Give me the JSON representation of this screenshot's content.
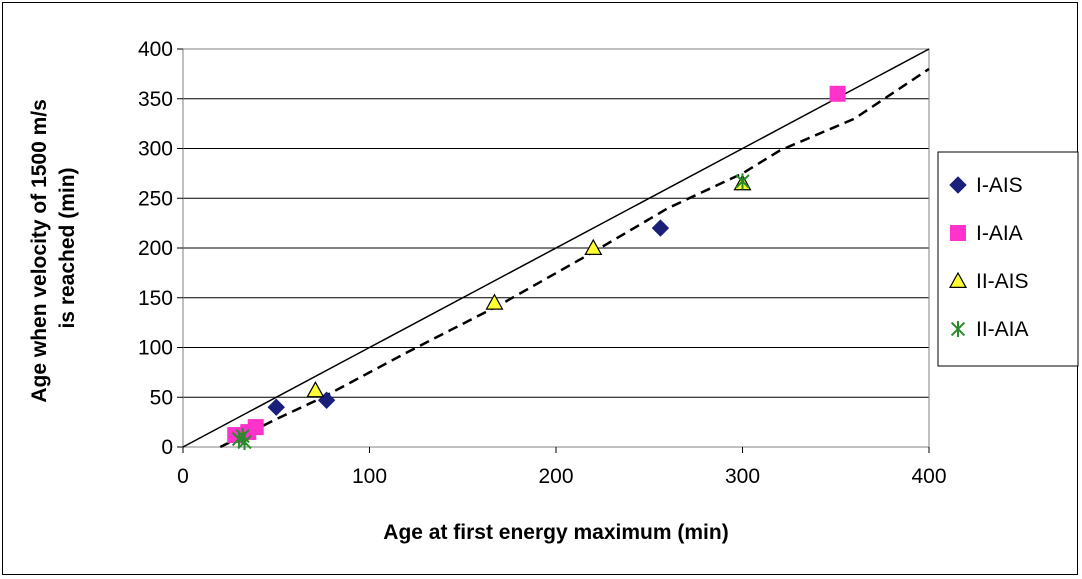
{
  "chart_data": {
    "type": "scatter",
    "title": "",
    "xlabel": "Age at first energy maximum (min)",
    "ylabel_lines": [
      "Age when velocity of 1500 m/s",
      "is reached (min)"
    ],
    "xlim": [
      0,
      400
    ],
    "ylim": [
      0,
      400
    ],
    "x_ticks": [
      0,
      100,
      200,
      300,
      400
    ],
    "y_ticks": [
      0,
      50,
      100,
      150,
      200,
      250,
      300,
      350,
      400
    ],
    "grid": "horizontal",
    "legend_position": "right",
    "series": [
      {
        "name": "I-AIS",
        "marker": "diamond",
        "color": "#1a1f7a",
        "points": [
          [
            31,
            12
          ],
          [
            50,
            40
          ],
          [
            77,
            47
          ],
          [
            256,
            220
          ]
        ]
      },
      {
        "name": "I-AIA",
        "marker": "square",
        "color": "#ff33cc",
        "points": [
          [
            28,
            12
          ],
          [
            35,
            15
          ],
          [
            39,
            20
          ],
          [
            351,
            355
          ]
        ]
      },
      {
        "name": "II-AIS",
        "marker": "triangle",
        "color": "#ffff33",
        "points": [
          [
            71,
            57
          ],
          [
            167,
            145
          ],
          [
            220,
            200
          ],
          [
            300,
            265
          ]
        ]
      },
      {
        "name": "II-AIA",
        "marker": "asterisk",
        "color": "#2a8a2a",
        "points": [
          [
            30,
            8
          ],
          [
            33,
            5
          ],
          [
            32,
            11
          ],
          [
            300,
            267
          ]
        ]
      }
    ],
    "reference_line": {
      "style": "solid",
      "points": [
        [
          0,
          0
        ],
        [
          400,
          400
        ]
      ]
    },
    "trend_line": {
      "style": "dashed",
      "points": [
        [
          20,
          0
        ],
        [
          50,
          28
        ],
        [
          75,
          50
        ],
        [
          100,
          75
        ],
        [
          120,
          95
        ],
        [
          170,
          143
        ],
        [
          220,
          196
        ],
        [
          260,
          240
        ],
        [
          300,
          275
        ],
        [
          320,
          298
        ],
        [
          360,
          330
        ],
        [
          400,
          380
        ]
      ]
    }
  }
}
